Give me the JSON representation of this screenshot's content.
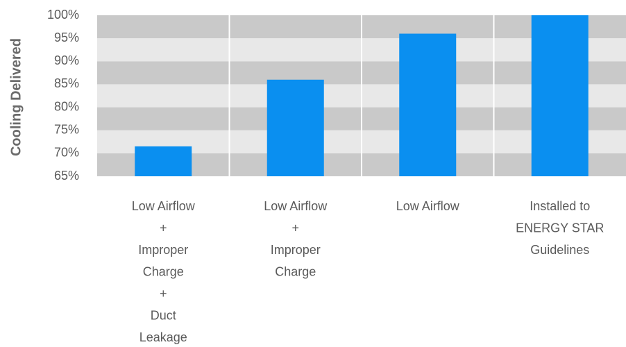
{
  "chart_data": {
    "type": "bar",
    "y_label": "Cooling Delivered",
    "categories": [
      [
        "Low Airflow",
        "+",
        "Improper",
        "Charge",
        "+",
        "Duct",
        "Leakage"
      ],
      [
        "Low Airflow",
        "+",
        "Improper",
        "Charge"
      ],
      [
        "Low Airflow"
      ],
      [
        "Installed to",
        "ENERGY STAR",
        "Guidelines"
      ]
    ],
    "values": [
      71.5,
      86,
      96,
      100
    ],
    "color": "#0a8ff0",
    "ylim": [
      65,
      100
    ],
    "yticks": [
      {
        "value": 65,
        "label": "65%"
      },
      {
        "value": 70,
        "label": "70%"
      },
      {
        "value": 75,
        "label": "75%"
      },
      {
        "value": 80,
        "label": "80%"
      },
      {
        "value": 85,
        "label": "85%"
      },
      {
        "value": 90,
        "label": "90%"
      },
      {
        "value": 95,
        "label": "95%"
      },
      {
        "value": 100,
        "label": "100%"
      }
    ],
    "grid": true
  }
}
